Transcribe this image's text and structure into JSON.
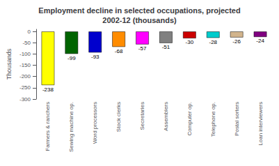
{
  "chart_data": {
    "type": "bar",
    "title": "Employment decline in selected occupations, projected\n2002-12 (thousands)",
    "ylabel": "Thousands",
    "categories": [
      "Farmers & ranchers",
      "Sewing machine op.",
      "Word processors",
      "Stock clerks",
      "Secretaries",
      "Assemblers",
      "Computer op.",
      "Telephone op.",
      "Postal sorters",
      "Loan interviewers"
    ],
    "values": [
      -238,
      -99,
      -93,
      -68,
      -57,
      -51,
      -30,
      -28,
      -26,
      -24
    ],
    "colors": [
      "#ffff00",
      "#006400",
      "#0000cd",
      "#ff8c00",
      "#ff00ff",
      "#808080",
      "#cc0000",
      "#00cccc",
      "#d2b48c",
      "#800080"
    ],
    "ylim": [
      -300,
      10
    ],
    "yticks": [
      0,
      -50,
      -100,
      -150,
      -200,
      -250,
      -300
    ],
    "grid": false,
    "data_labels": true
  }
}
